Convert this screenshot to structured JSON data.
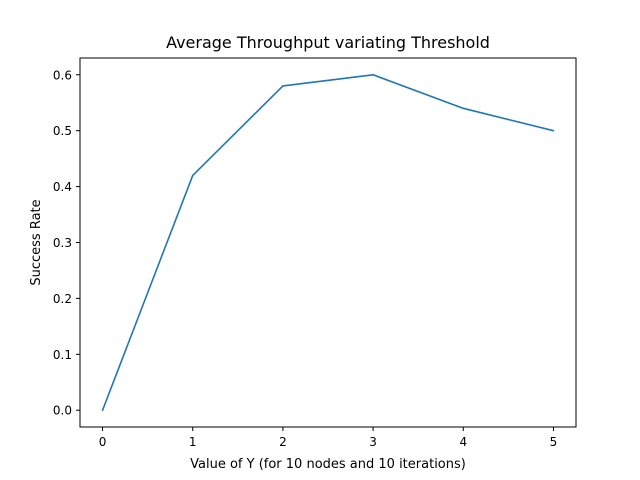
{
  "chart_data": {
    "type": "line",
    "title": "Average Throughput variating Threshold",
    "xlabel": "Value of Y (for 10 nodes and 10 iterations)",
    "ylabel": "Success Rate",
    "x": [
      0,
      1,
      2,
      3,
      4,
      5
    ],
    "series": [
      {
        "values": [
          0.0,
          0.42,
          0.58,
          0.6,
          0.54,
          0.5
        ],
        "color": "#1f77b4"
      }
    ],
    "xlim": [
      -0.25,
      5.25
    ],
    "ylim": [
      -0.03,
      0.63
    ],
    "xticks": [
      0,
      1,
      2,
      3,
      4,
      5
    ],
    "xtick_labels": [
      "0",
      "1",
      "2",
      "3",
      "4",
      "5"
    ],
    "yticks": [
      0.0,
      0.1,
      0.2,
      0.3,
      0.4,
      0.5,
      0.6
    ],
    "ytick_labels": [
      "0.0",
      "0.1",
      "0.2",
      "0.3",
      "0.4",
      "0.5",
      "0.6"
    ],
    "grid": false,
    "legend": "none"
  }
}
